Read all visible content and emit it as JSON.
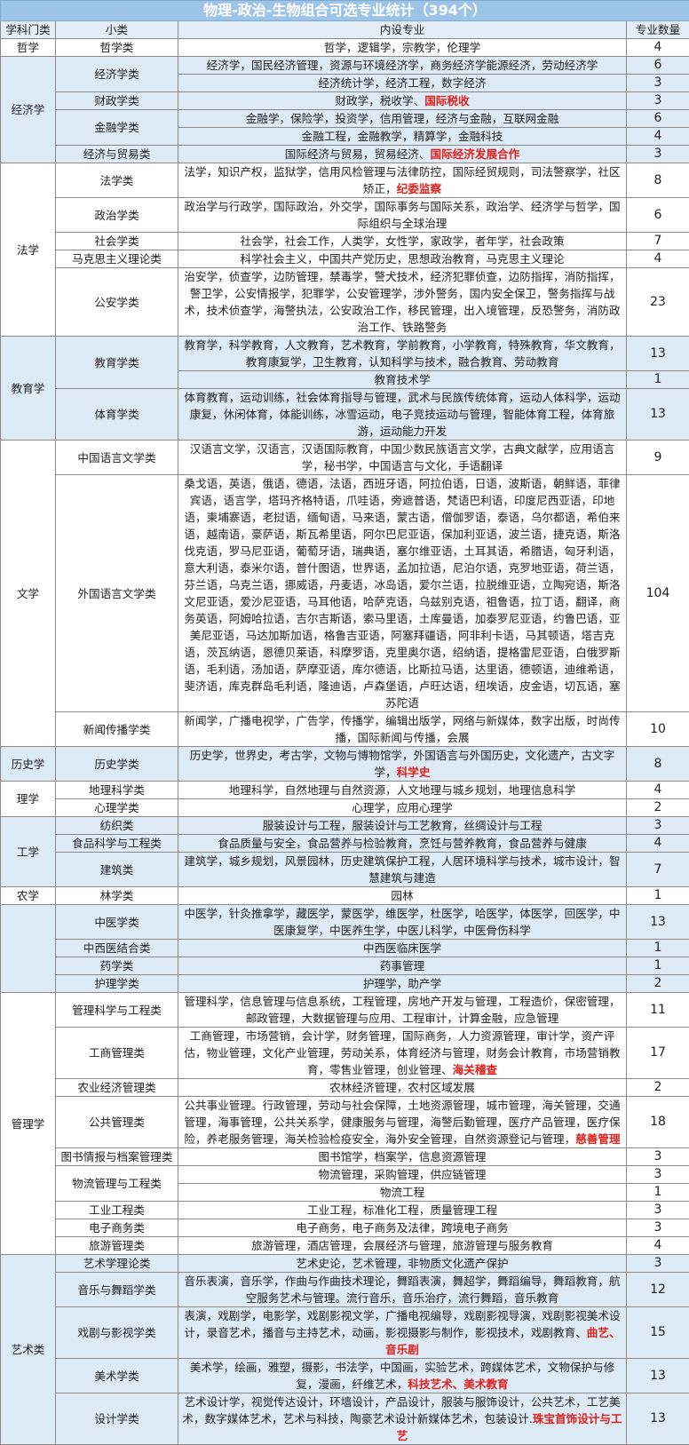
{
  "title": "物理-政治-生物组合可选专业统计（394个）",
  "headers": {
    "category": "学科门类",
    "subclass": "小类",
    "majors": "内设专业",
    "count": "专业数量"
  },
  "colors": {
    "title_bg": "#9dc3e6",
    "shaded_bg": "#ddebf7",
    "highlight": "#e0201a"
  },
  "sections": [
    {
      "category": "哲学",
      "shaded": false,
      "subs": [
        {
          "name": "哲学类",
          "rows": [
            {
              "majors": "哲学，逻辑学，宗教学，伦理学",
              "count": "4"
            }
          ]
        }
      ]
    },
    {
      "category": "经济学",
      "shaded": true,
      "subs": [
        {
          "name": "经济学类",
          "rows": [
            {
              "majors": "经济学，国民经济管理，资源与环境经济学，商务经济学能源经济，劳动经济学",
              "count": "6"
            },
            {
              "majors": "经济统计学，经济工程，数字经济",
              "count": "3"
            }
          ]
        },
        {
          "name": "财政学类",
          "rows": [
            {
              "majors": "财政学，税收学、",
              "highlight": "国际税收",
              "count": "3"
            }
          ]
        },
        {
          "name": "金融学类",
          "rows": [
            {
              "majors": "金融学，保险学，投资学，信用管理，经济与金融，互联网金融",
              "count": "6"
            },
            {
              "majors": "金融工程，金融教学，精算学，金融科技",
              "count": "4"
            }
          ]
        },
        {
          "name": "经济与贸易类",
          "rows": [
            {
              "majors": "国际经济与贸易，贸易经济、",
              "highlight": "国际经济发展合作",
              "count": "3"
            }
          ]
        }
      ]
    },
    {
      "category": "法学",
      "shaded": false,
      "subs": [
        {
          "name": "法学类",
          "rows": [
            {
              "majors": "法学，知识产权，监狱学，信用风检管理与法律防控，国际经贸规则，司法警察学，社区矫正，",
              "highlight": "纪委监察",
              "count": "8"
            }
          ]
        },
        {
          "name": "政治学类",
          "rows": [
            {
              "majors": "政治学与行政学，国际政治，外交学，国际事务与国际关系，政治学、经济学与哲学，国际组织与全球治理",
              "count": "6"
            }
          ]
        },
        {
          "name": "社会学类",
          "rows": [
            {
              "majors": "社会学，社会工作，人类学，女性学，家政学，者年学，社会政策",
              "count": "7"
            }
          ]
        },
        {
          "name": "马克思主义理论类",
          "rows": [
            {
              "majors": "科学社会主义，中国共产党历史，思想政治教育，马克思主义理论",
              "count": "4"
            }
          ]
        },
        {
          "name": "公安学类",
          "rows": [
            {
              "majors": "治安学，侦查学，边防管理，禁毒学，警犬技术，经济犯罪侦查，边防指挥，消防指挥，警卫学，公安情报学，犯罪学，公安管理学，涉外警务，国内安全保卫，警务指挥与战术，技术侦查学，海警执法，公安政治工作，移民管理，出入境管理，反恐警务，消防政治工作、铁路警务",
              "count": "23"
            }
          ]
        }
      ]
    },
    {
      "category": "教育学",
      "shaded": true,
      "subs": [
        {
          "name": "教育学类",
          "rows": [
            {
              "majors": "教育学，科学教育，人文教育，艺术教育，学前教育，小学教育，特殊教育，华文教育，教育康复学，卫生教育，认知科学与技术，融合教育、劳动教育",
              "count": "13"
            },
            {
              "majors": "教育技术学",
              "count": "1"
            }
          ]
        },
        {
          "name": "体育学类",
          "rows": [
            {
              "majors": "体育教育，运动训练，社会体育指导与管理，武术与民族传统体育，运动人体科学，运动康复，休闲体育，体能训练，冰雪运动，电子竞技运动与管理，智能体育工程，体育旅游，运动能力开发",
              "count": "13"
            }
          ]
        }
      ]
    },
    {
      "category": "文学",
      "shaded": false,
      "subs": [
        {
          "name": "中国语言文学类",
          "rows": [
            {
              "majors": "汉语言文学，汉语言，汉语国际教育，中国少数民族语言文学，古典文献学，应用语言学，秘书学，中国语言与文化，手语翻译",
              "count": "9"
            }
          ]
        },
        {
          "name": "外国语言文学类",
          "rows": [
            {
              "majors": "桑戈语，英语，俄语，德语，法语，西班牙语，阿拉伯语，日语，波斯语，朝鲜语，菲律宾语，语言学，塔玛齐格特语，爪哇语，旁遮普语，梵语巴利语，印度尼西亚语，印地语，柬埔寨语，老挝语，缅甸语，马来语，蒙古语，僧伽罗语，泰语，乌尔都语，希伯来语，越南语，豪萨语，斯瓦希里语，阿尔巴尼亚语，保加利亚语，波兰语，捷克语，斯洛伐克语，罗马尼亚语，葡萄牙语，瑞典语，塞尔维亚语，土耳其语，希腊语，匈牙利语，意大利语，泰米尔语，普什图语，世界语，孟加拉语，尼泊尔语，克罗地亚语，荷兰语，芬兰语，乌克兰语，挪威语，丹麦语，冰岛语，爱尔兰语，拉脱维亚语，立陶宛语，斯洛文尼亚语，爱沙尼亚语，马耳他语，哈萨克语，乌兹别克语，祖鲁语，拉丁语，翻译，商务英语，阿姆哈拉语，吉尔吉斯语，索马里语，土库曼语，加泰罗尼亚语，约鲁巴语，亚美尼亚语，马达加斯加语，格鲁吉亚语，阿塞拜疆语，阿非利卡语，马其顿语，塔吉克语，茨瓦纳语，恩德贝莱语，科摩罗语，克里奥尔语，绍纳语，提格雷尼亚语，白俄罗斯语，毛利语，汤加语，萨摩亚语，库尔德语，比斯拉马语，达里语，德顿语，迪维希语，斐济语，库克群岛毛利语，隆迪语，卢森堡语，卢旺达语，纽埃语，皮金语，切瓦语，塞苏陀语",
              "count": "104"
            }
          ]
        },
        {
          "name": "新闻传播学类",
          "rows": [
            {
              "majors": "新闻学，广播电视学，广告学，传播学，编辑出版学，网络与新媒体，数字出版，时尚传播，国际新闻与传播，会展",
              "count": "10"
            }
          ]
        }
      ]
    },
    {
      "category": "历史学",
      "shaded": true,
      "subs": [
        {
          "name": "历史学类",
          "rows": [
            {
              "majors": "历史学，世界史，考古学，文物与博物馆学，外国语言与外国历史，文化遗产，古文字学，",
              "highlight": "科学史",
              "count": "8"
            }
          ]
        }
      ]
    },
    {
      "category": "理学",
      "shaded": false,
      "subs": [
        {
          "name": "地理科学类",
          "rows": [
            {
              "majors": "地理科学，自然地理与自然资源，人文地理与城乡规划，地理信息科学",
              "count": "4"
            }
          ]
        },
        {
          "name": "心理学类",
          "rows": [
            {
              "majors": "心理学，应用心理学",
              "count": "2"
            }
          ]
        }
      ]
    },
    {
      "category": "工学",
      "shaded": true,
      "subs": [
        {
          "name": "纺织类",
          "rows": [
            {
              "majors": "服装设计与工程，服装设计与工艺教育，丝绸设计与工程",
              "count": "3"
            }
          ]
        },
        {
          "name": "食品科学与工程类",
          "rows": [
            {
              "majors": "食品质量与安全，食品营养与检验教育，烹饪与营养教育，食品营养与健康",
              "count": "4"
            }
          ]
        },
        {
          "name": "建筑类",
          "rows": [
            {
              "majors": "建筑学，城乡规划，风景园林，历史建筑保护工程，人居环境科学与技术，城市设计，智慧建筑与建造",
              "count": "7"
            }
          ]
        }
      ]
    },
    {
      "category": "农学",
      "shaded": false,
      "subs": [
        {
          "name": "林学类",
          "rows": [
            {
              "majors": "园林",
              "count": "1"
            }
          ]
        }
      ]
    },
    {
      "category": "",
      "shaded": true,
      "subs": [
        {
          "name": "中医学类",
          "rows": [
            {
              "majors": "中医学，针灸推拿学，藏医学，蒙医学，维医学，杜医学，哈医学，体医学，回医学，中医康复学，中医养生学，中医儿科学，中医骨伤科学",
              "count": "13"
            }
          ]
        },
        {
          "name": "中西医结合类",
          "rows": [
            {
              "majors": "中西医临床医学",
              "count": "1"
            }
          ]
        },
        {
          "name": "药学类",
          "rows": [
            {
              "majors": "药事管理",
              "count": "1"
            }
          ]
        },
        {
          "name": "护理学类",
          "rows": [
            {
              "majors": "护理学，助产学",
              "count": "2"
            }
          ]
        }
      ]
    },
    {
      "category": "管理学",
      "shaded": false,
      "subs": [
        {
          "name": "管理科学与工程类",
          "rows": [
            {
              "majors": "管理科学，信息管理与信息系统，工程管理，房地产开发与管理，工程造价，保密管理，邮政管理，大数据管理与应用、工程审计，计算金融，应急管理",
              "count": "11"
            }
          ]
        },
        {
          "name": "工商管理类",
          "rows": [
            {
              "majors": "工商管理，市场营销，会计学，财务管理，国际商务，人力资源管理，审计学，资产评估，物业管理，文化产业管理，劳动关系，体育经济与管理，财务会计教育，市场营销教育，零售业管理，创业管理、",
              "highlight": "海关稽查",
              "count": "17"
            }
          ]
        },
        {
          "name": "农业经济管理类",
          "rows": [
            {
              "majors": "农林经济管理，农村区域发展",
              "count": "2"
            }
          ]
        },
        {
          "name": "公共管理类",
          "rows": [
            {
              "majors": "公共事业管理。行政管理，劳动与社会保障，土地资源管理，城市管理，海关管理，交通管理，海事管理，公共关系学，健康服务与管理，海警后勤管理，医疗产品管理，医疗保险，养老服务管理，海关检验检疫安全，海外安全管理，自然资源登记与管理，",
              "highlight": "慈善管理",
              "count": "18"
            }
          ]
        },
        {
          "name": "图书情报与档案管理类",
          "rows": [
            {
              "majors": "图书馆学，档案学，信息资源管理",
              "count": "3"
            }
          ]
        },
        {
          "name": "物流管理与工程类",
          "rows": [
            {
              "majors": "物流管理，采购管理，供应链管理",
              "count": "3"
            },
            {
              "majors": "物流工程",
              "count": "1"
            }
          ]
        },
        {
          "name": "工业工程类",
          "rows": [
            {
              "majors": "工业工程，标准化工程，质量管理工程",
              "count": "3"
            }
          ]
        },
        {
          "name": "电子商务类",
          "rows": [
            {
              "majors": "电子商务，电子商务及法律，跨境电子商务",
              "count": "3"
            }
          ]
        },
        {
          "name": "旅游管理类",
          "rows": [
            {
              "majors": "旅游管理，酒店管理，会展经济与管理，旅游管理与服务教育",
              "count": "4"
            }
          ]
        }
      ]
    },
    {
      "category": "艺术类",
      "shaded": true,
      "subs": [
        {
          "name": "艺术学理论类",
          "rows": [
            {
              "majors": "艺术史论，艺术管理，非物质文化遗产保护",
              "count": "3"
            }
          ]
        },
        {
          "name": "音乐与舞蹈学类",
          "rows": [
            {
              "majors": "音乐表演，音乐学，作曲与作曲技术理论，舞蹈表演，舞超学，舞蹈编导，舞蹈教育，航空服务艺术与管理。流行音乐，音乐治疗，流行舞蹈，音乐教育",
              "count": "12"
            }
          ]
        },
        {
          "name": "戏剧与影视学类",
          "rows": [
            {
              "majors": "表演，戏剧学，电影学，戏剧影视文学，广播电视编导，戏剧影视导演，戏剧影视美术设计，录音艺术，播音与主持艺术，动画，影视摄影与制作，影视技术，戏剧教育、",
              "highlight": "曲艺、音乐剧",
              "count": "15"
            }
          ]
        },
        {
          "name": "美术学类",
          "rows": [
            {
              "majors": "美术学，绘画，雅塑，摄影，书法学，中国画，实验艺术，跨媒体艺术，文物保护与修复，漫画，纤维艺术，",
              "highlight": "科技艺术、美术教育",
              "count": "13"
            }
          ]
        },
        {
          "name": "设计学类",
          "rows": [
            {
              "majors": "艺术设计学，视觉传达设计，环墙设计，产品设计，服装与服饰设计，公共艺术，工艺美术，数字媒体艺术，艺术与科技，陶豪艺术设计新媒体艺术，包装设计.",
              "highlight": "珠宝首饰设计与工艺",
              "count": "13"
            }
          ]
        }
      ]
    }
  ]
}
